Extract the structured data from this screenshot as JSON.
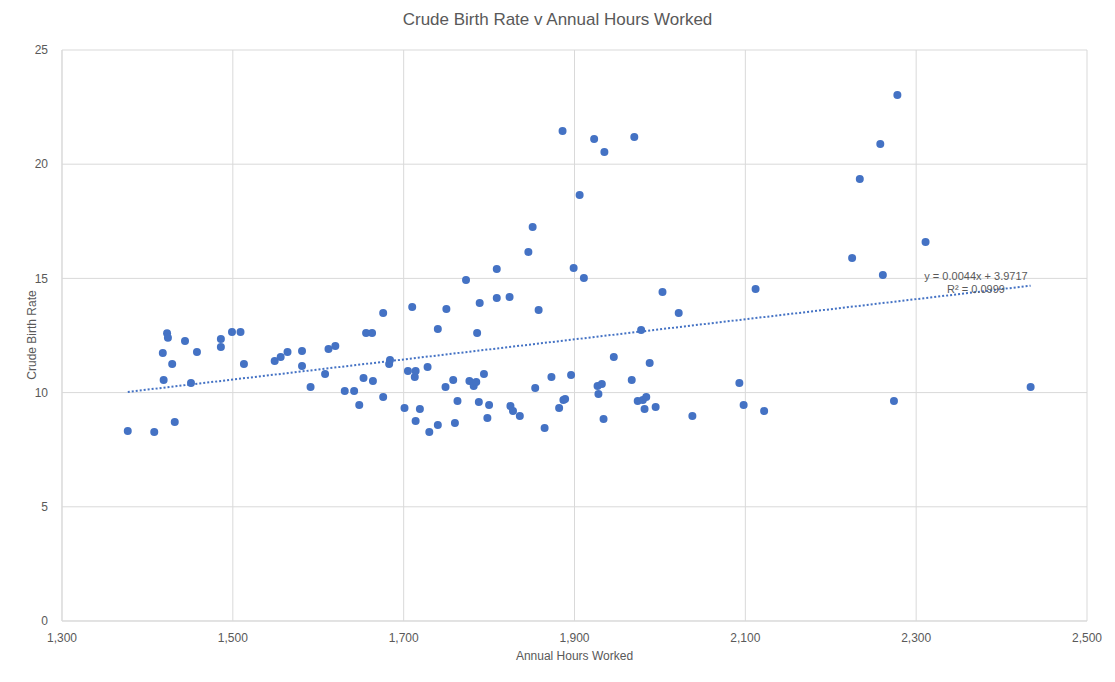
{
  "chart_data": {
    "type": "scatter",
    "title": "Crude Birth Rate v Annual Hours Worked",
    "x_label": "Annual Hours Worked",
    "y_label": "Crude Birth Rate",
    "x": [
      1377,
      1408,
      1432,
      1418,
      1423,
      1424,
      1429,
      1419,
      1444,
      1451,
      1458,
      1486,
      1486,
      1499,
      1509,
      1513,
      1549,
      1556,
      1564,
      1581,
      1581,
      1591,
      1608,
      1612,
      1620,
      1631,
      1642,
      1648,
      1653,
      1656,
      1663,
      1664,
      1676,
      1676,
      1683,
      1684,
      1701,
      1705,
      1710,
      1713,
      1714,
      1714,
      1719,
      1728,
      1730,
      1740,
      1740,
      1749,
      1750,
      1758,
      1763,
      1760,
      1773,
      1777,
      1782,
      1785,
      1786,
      1788,
      1789,
      1794,
      1798,
      1800,
      1809,
      1809,
      1824,
      1825,
      1828,
      1836,
      1846,
      1851,
      1854,
      1858,
      1865,
      1873,
      1882,
      1886,
      1887,
      1889,
      1896,
      1899,
      1906,
      1911,
      1923,
      1927,
      1928,
      1932,
      1934,
      1935,
      1946,
      1967,
      1970,
      1974,
      1978,
      1980,
      1982,
      1984,
      1988,
      1995,
      2003,
      2022,
      2038,
      2093,
      2098,
      2112,
      2122,
      2225,
      2234,
      2258,
      2261,
      2274,
      2278,
      2311,
      2434
    ],
    "values": [
      8.32,
      8.28,
      8.71,
      11.73,
      12.6,
      12.4,
      11.25,
      10.55,
      12.26,
      10.42,
      11.78,
      12.35,
      12.0,
      12.65,
      12.65,
      11.25,
      11.38,
      11.56,
      11.78,
      11.82,
      11.16,
      10.25,
      10.81,
      11.91,
      12.04,
      10.07,
      10.07,
      9.46,
      10.64,
      12.61,
      12.61,
      10.51,
      9.81,
      13.49,
      11.25,
      11.43,
      9.33,
      10.95,
      13.75,
      10.68,
      10.95,
      8.76,
      9.28,
      11.12,
      8.28,
      8.58,
      12.78,
      10.25,
      13.66,
      10.55,
      9.63,
      8.67,
      14.93,
      10.51,
      10.29,
      10.46,
      12.61,
      9.59,
      13.92,
      10.81,
      8.89,
      9.46,
      15.41,
      14.14,
      14.19,
      9.41,
      9.19,
      8.98,
      16.16,
      17.25,
      10.2,
      13.62,
      8.45,
      10.68,
      9.33,
      21.45,
      9.68,
      9.72,
      10.77,
      15.46,
      18.65,
      15.02,
      21.1,
      10.29,
      9.94,
      10.38,
      8.84,
      20.53,
      11.56,
      10.55,
      21.19,
      9.63,
      12.74,
      9.68,
      9.28,
      9.81,
      11.3,
      9.37,
      14.4,
      13.49,
      8.98,
      10.42,
      9.46,
      14.54,
      9.19,
      15.89,
      19.35,
      20.88,
      15.15,
      9.63,
      23.03,
      16.59,
      10.25
    ],
    "color": "#4472c4",
    "marker": "circle",
    "xlim": [
      1300,
      2500
    ],
    "xticks": [
      {
        "value": 1300,
        "label": "1,300"
      },
      {
        "value": 1500,
        "label": "1,500"
      },
      {
        "value": 1700,
        "label": "1,700"
      },
      {
        "value": 1900,
        "label": "1,900"
      },
      {
        "value": 2100,
        "label": "2,100"
      },
      {
        "value": 2300,
        "label": "2,300"
      },
      {
        "value": 2500,
        "label": "2,500"
      }
    ],
    "ylim": [
      0,
      25
    ],
    "yticks": [
      0,
      5,
      10,
      15,
      20,
      25
    ],
    "grid": true,
    "trendline": {
      "slope": 0.0044,
      "intercept": 3.9717,
      "color": "#4472c4",
      "line_style": "dotted"
    },
    "annotations": [
      "y = 0.0044x + 3.9717",
      "R² = 0.0999"
    ]
  }
}
